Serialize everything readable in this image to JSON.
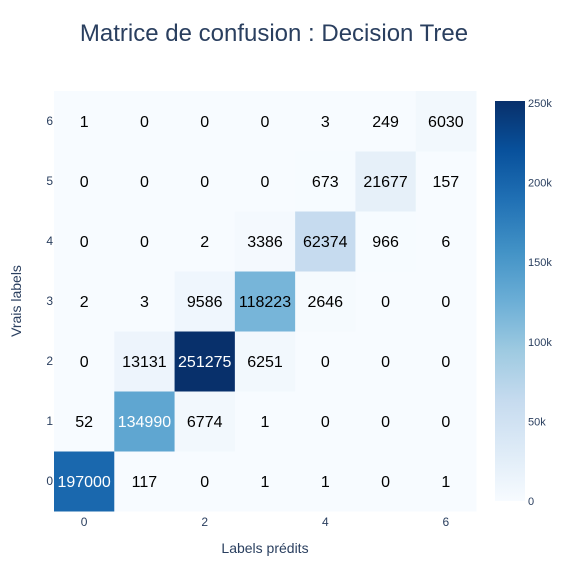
{
  "chart_data": {
    "type": "heatmap",
    "title": "Matrice de confusion : Decision Tree",
    "xlabel": "Labels prédits",
    "ylabel": "Vrais labels",
    "x": [
      0,
      1,
      2,
      3,
      4,
      5,
      6
    ],
    "y": [
      0,
      1,
      2,
      3,
      4,
      5,
      6
    ],
    "x_tick_labels": [
      "0",
      "2",
      "4",
      "6"
    ],
    "x_tick_values": [
      0,
      2,
      4,
      6
    ],
    "y_tick_labels": [
      "0",
      "1",
      "2",
      "3",
      "4",
      "5",
      "6"
    ],
    "z": [
      [
        197000,
        117,
        0,
        1,
        1,
        0,
        1
      ],
      [
        52,
        134990,
        6774,
        1,
        0,
        0,
        0
      ],
      [
        0,
        13131,
        251275,
        6251,
        0,
        0,
        0
      ],
      [
        2,
        3,
        9586,
        118223,
        2646,
        0,
        0
      ],
      [
        0,
        0,
        2,
        3386,
        62374,
        966,
        6
      ],
      [
        0,
        0,
        0,
        0,
        673,
        21677,
        157
      ],
      [
        1,
        0,
        0,
        0,
        3,
        249,
        6030
      ]
    ],
    "colorscale": "Blues",
    "zmin": 0,
    "zmax": 251275,
    "colorbar": {
      "tick_values": [
        0,
        50000,
        100000,
        150000,
        200000,
        250000
      ],
      "tick_labels": [
        "0",
        "50k",
        "100k",
        "150k",
        "200k",
        "250k"
      ]
    },
    "colors": {
      "low": "#f7fbff",
      "high": "#08306b",
      "title": "#2a3f5f",
      "tick": "#2a3f5f",
      "text_dark": "#000000",
      "text_light": "#ffffff"
    }
  }
}
